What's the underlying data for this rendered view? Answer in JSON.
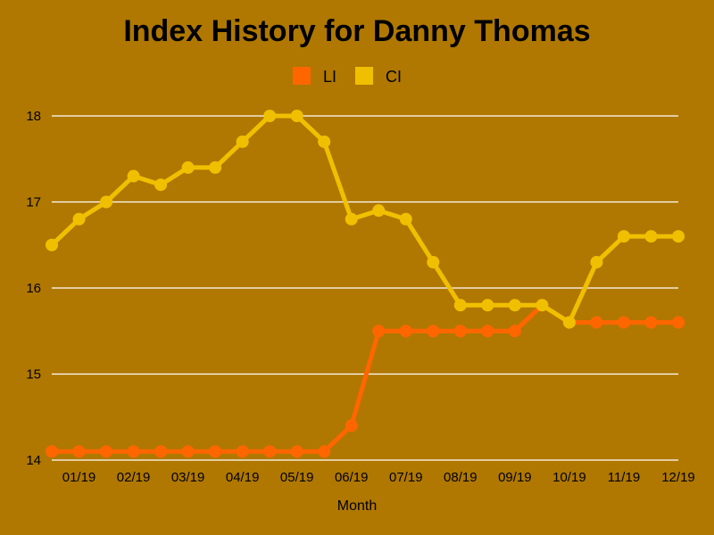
{
  "chart_data": {
    "type": "line",
    "title": "Index History for Danny Thomas",
    "xlabel": "Month",
    "ylabel": "",
    "ylim": [
      14,
      18
    ],
    "yticks": [
      14,
      15,
      16,
      17,
      18
    ],
    "grid": true,
    "legend": "top-center",
    "xticks": [
      "01/19",
      "02/19",
      "03/19",
      "04/19",
      "05/19",
      "06/19",
      "07/19",
      "08/19",
      "09/19",
      "10/19",
      "11/19",
      "12/19"
    ],
    "x": [
      "01/19a",
      "01/19b",
      "02/19a",
      "02/19b",
      "03/19a",
      "03/19b",
      "04/19a",
      "04/19b",
      "05/19a",
      "05/19b",
      "06/19a",
      "06/19b",
      "07/19a",
      "07/19b",
      "08/19a",
      "08/19b",
      "09/19a",
      "09/19b",
      "10/19a",
      "10/19b",
      "11/19a",
      "11/19b",
      "12/19a",
      "12/19b"
    ],
    "series": [
      {
        "name": "LI",
        "color": "#ff6600",
        "values": [
          14.1,
          14.1,
          14.1,
          14.1,
          14.1,
          14.1,
          14.1,
          14.1,
          14.1,
          14.1,
          14.1,
          14.4,
          15.5,
          15.5,
          15.5,
          15.5,
          15.5,
          15.5,
          15.8,
          15.6,
          15.6,
          15.6,
          15.6,
          15.6
        ]
      },
      {
        "name": "CI",
        "color": "#f0c000",
        "values": [
          16.5,
          16.8,
          17.0,
          17.3,
          17.2,
          17.4,
          17.4,
          17.7,
          18.0,
          18.0,
          17.7,
          16.8,
          16.9,
          16.8,
          16.3,
          15.8,
          15.8,
          15.8,
          15.8,
          15.6,
          16.3,
          16.6,
          16.6,
          16.6
        ]
      }
    ]
  }
}
